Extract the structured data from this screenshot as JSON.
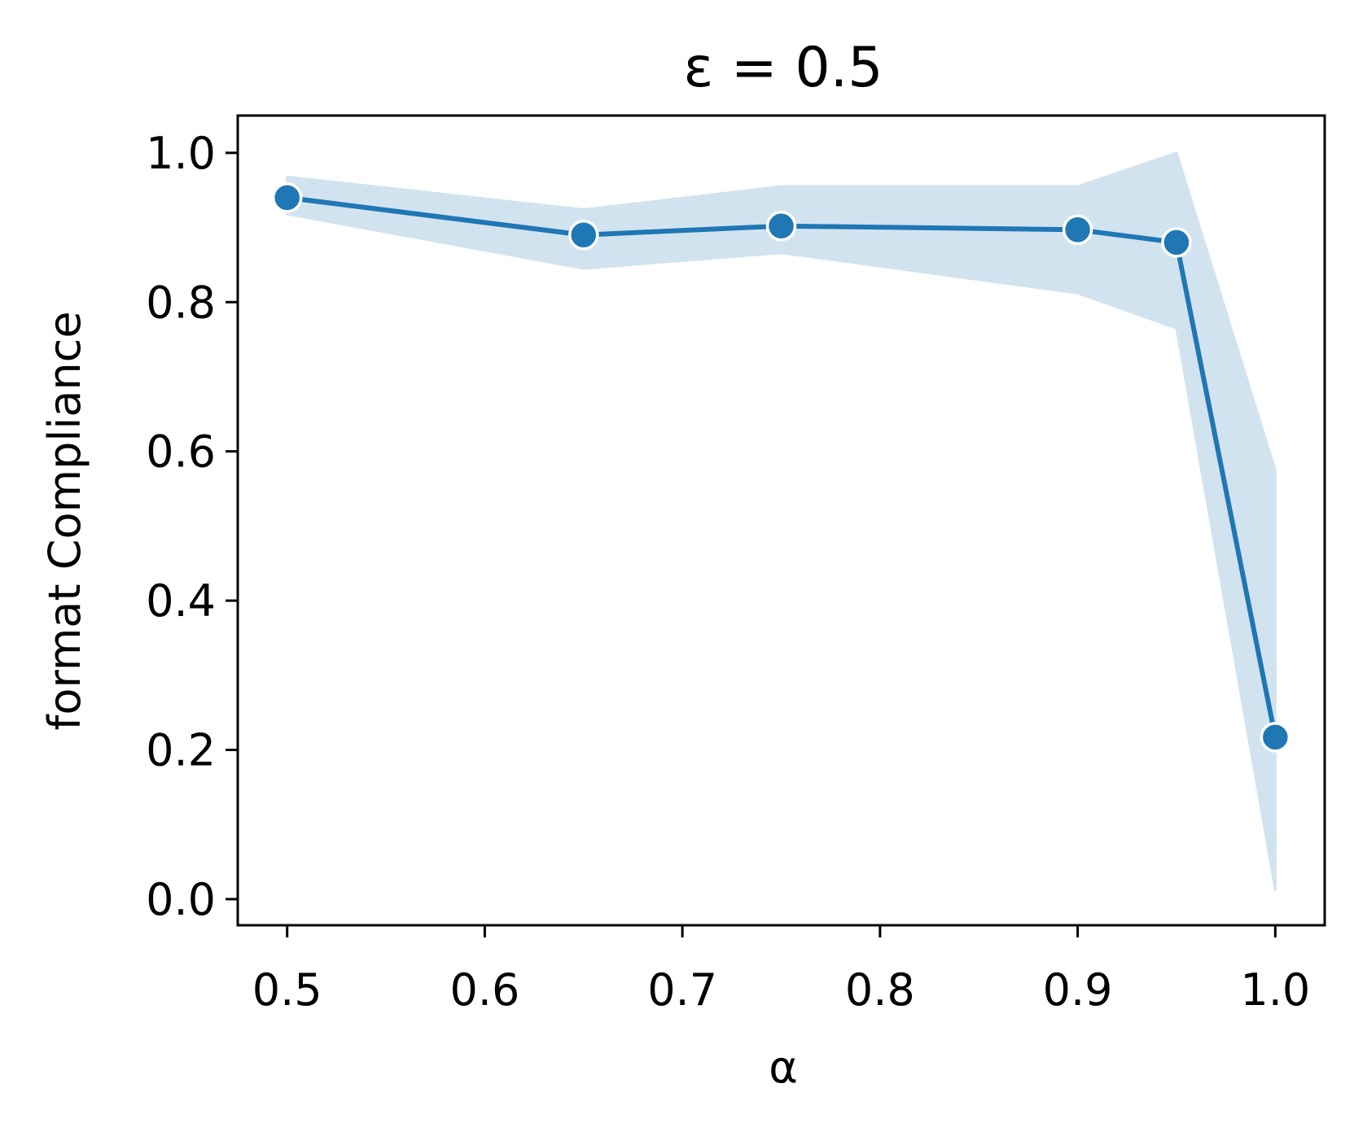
{
  "chart_data": {
    "type": "line",
    "title": "ε = 0.5",
    "xlabel": "α",
    "ylabel": "format Compliance",
    "xlim": [
      0.475,
      1.025
    ],
    "ylim": [
      -0.035,
      1.05
    ],
    "xticks": [
      0.5,
      0.6,
      0.7,
      0.8,
      0.9,
      1.0
    ],
    "xtick_labels": [
      "0.5",
      "0.6",
      "0.7",
      "0.8",
      "0.9",
      "1.0"
    ],
    "yticks": [
      0.0,
      0.2,
      0.4,
      0.6,
      0.8,
      1.0
    ],
    "ytick_labels": [
      "0.0",
      "0.2",
      "0.4",
      "0.6",
      "0.8",
      "1.0"
    ],
    "grid": false,
    "series": [
      {
        "x": [
          0.5,
          0.65,
          0.75,
          0.9,
          0.95,
          1.0
        ],
        "y": [
          0.94,
          0.89,
          0.902,
          0.897,
          0.88,
          0.217
        ],
        "band_lower": [
          0.918,
          0.845,
          0.866,
          0.812,
          0.765,
          0.013
        ],
        "band_upper": [
          0.968,
          0.924,
          0.955,
          0.955,
          1.0,
          0.575
        ],
        "color": "#1f77b4",
        "band_color": "#d2e3f0",
        "marker": "circle"
      }
    ]
  }
}
